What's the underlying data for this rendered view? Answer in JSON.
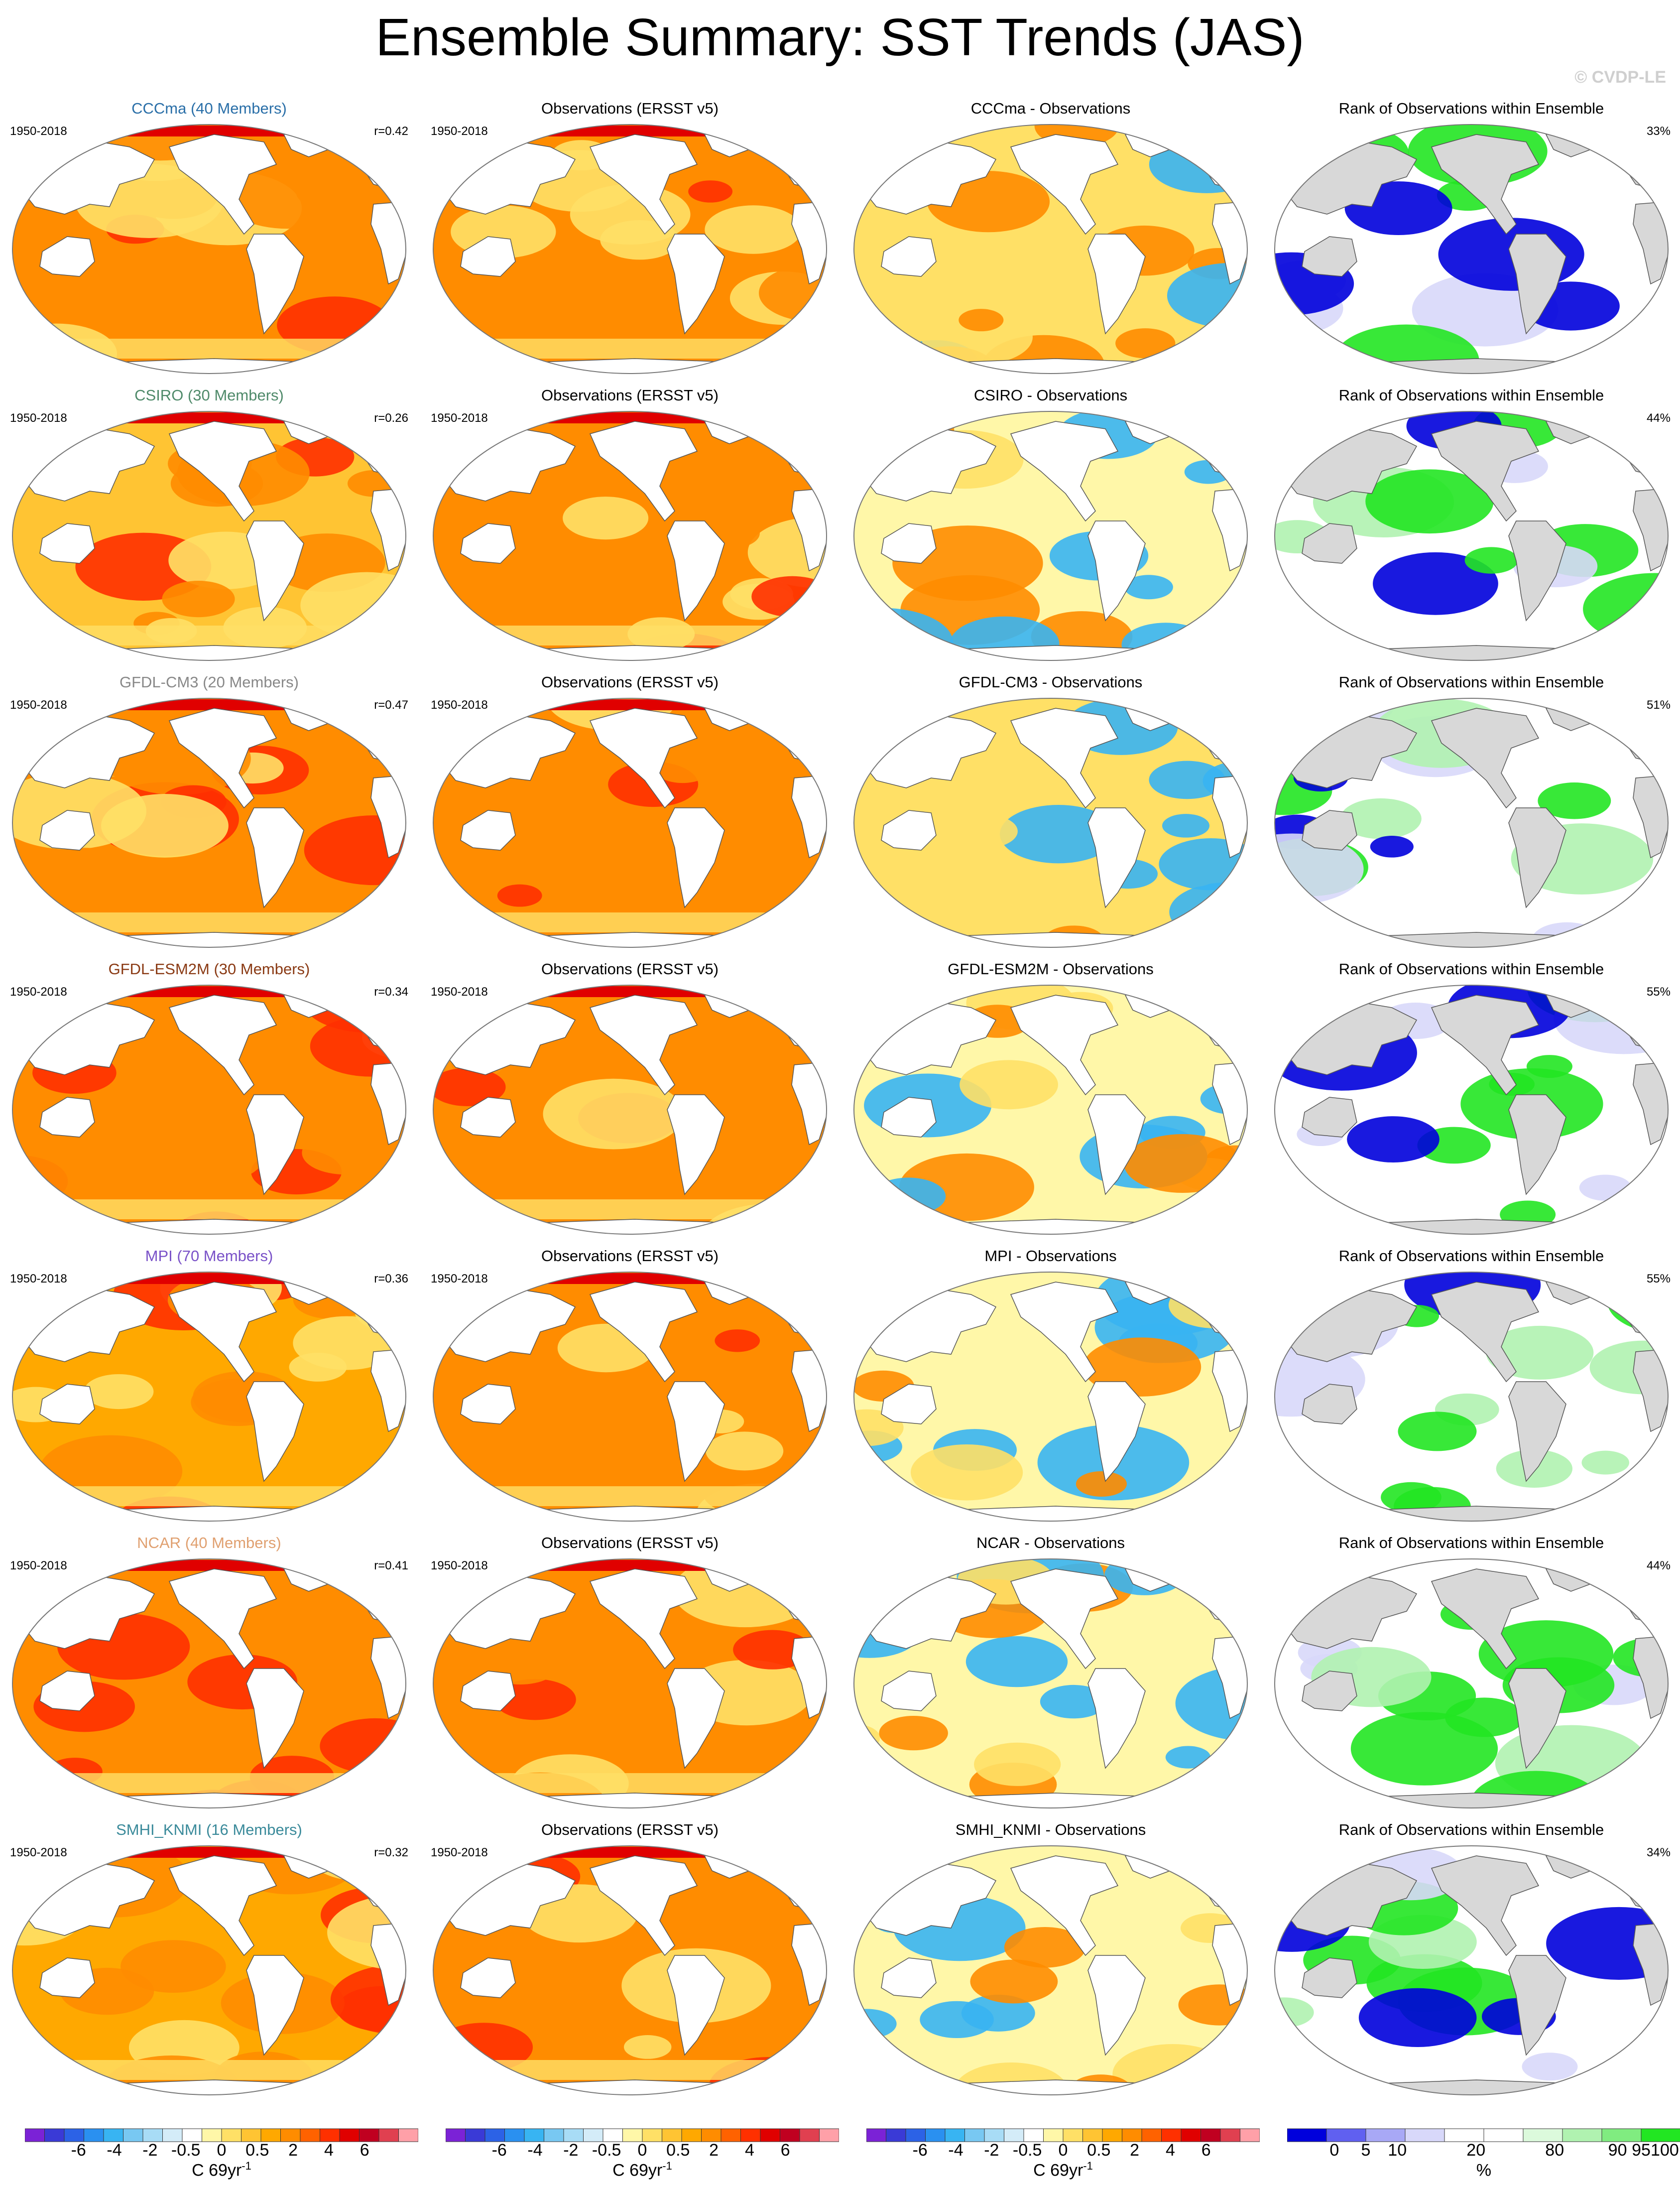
{
  "figure": {
    "title": "Ensemble Summary: SST Trends (JAS)",
    "copyright": "© CVDP-LE"
  },
  "colors": {
    "trend_bins": [
      "#7b22d6",
      "#3a3ad6",
      "#2c62e6",
      "#2a90f0",
      "#38b4f2",
      "#78c8f2",
      "#a8dcf6",
      "#d4ecf8",
      "#ffffff",
      "#fff7a8",
      "#ffe066",
      "#ffc433",
      "#ffa800",
      "#ff8c00",
      "#ff6200",
      "#ff3000",
      "#e00000",
      "#c00020",
      "#e04050",
      "#ffa0a8"
    ],
    "rank_bins": [
      "#0000dc",
      "#6060f0",
      "#a8a8f6",
      "#d8d8fa",
      "#ffffff",
      "#ffffff",
      "#dcfadc",
      "#b0f2b0",
      "#80ec80",
      "#22e622"
    ],
    "land": "#d8d8d8",
    "model_title_colors": {
      "CCCma": "#2a6fa8",
      "CSIRO": "#4f8a6a",
      "GFDL-CM3": "#888888",
      "GFDL-ESM2M": "#8a3a14",
      "MPI": "#7a52c8",
      "NCAR": "#e0a070",
      "SMHI_KNMI": "#3a8a9a"
    }
  },
  "rows": [
    {
      "model": "CCCma",
      "model_title": "CCCma (40 Members)",
      "years": "1950-2018",
      "r": "r=0.42",
      "obs_title": "Observations (ERSST v5)",
      "obs_years": "1950-2018",
      "diff_title": "CCCma - Observations",
      "rank_title": "Rank of Observations within Ensemble",
      "rank_pct": "33%",
      "model_level": 0.75,
      "obs_level": 0.65,
      "diff_level": 0.45,
      "rank_blue": 0.45,
      "rank_green": 0.12
    },
    {
      "model": "CSIRO",
      "model_title": "CSIRO (30 Members)",
      "years": "1950-2018",
      "r": "r=0.26",
      "obs_title": "Observations (ERSST v5)",
      "obs_years": "1950-2018",
      "diff_title": "CSIRO - Observations",
      "rank_title": "Rank of Observations within Ensemble",
      "rank_pct": "44%",
      "model_level": 0.45,
      "obs_level": 0.65,
      "diff_level": 0.15,
      "rank_blue": 0.08,
      "rank_green": 0.4
    },
    {
      "model": "GFDL-CM3",
      "model_title": "GFDL-CM3 (20 Members)",
      "years": "1950-2018",
      "r": "r=0.47",
      "obs_title": "Observations (ERSST v5)",
      "obs_years": "1950-2018",
      "diff_title": "GFDL-CM3 - Observations",
      "rank_title": "Rank of Observations within Ensemble",
      "rank_pct": "51%",
      "model_level": 0.7,
      "obs_level": 0.65,
      "diff_level": 0.4,
      "rank_blue": 0.3,
      "rank_green": 0.22
    },
    {
      "model": "GFDL-ESM2M",
      "model_title": "GFDL-ESM2M (30 Members)",
      "years": "1950-2018",
      "r": "r=0.34",
      "obs_title": "Observations (ERSST v5)",
      "obs_years": "1950-2018",
      "diff_title": "GFDL-ESM2M - Observations",
      "rank_title": "Rank of Observations within Ensemble",
      "rank_pct": "55%",
      "model_level": 0.65,
      "obs_level": 0.65,
      "diff_level": 0.3,
      "rank_blue": 0.2,
      "rank_green": 0.3
    },
    {
      "model": "MPI",
      "model_title": "MPI (70 Members)",
      "years": "1950-2018",
      "r": "r=0.36",
      "obs_title": "Observations (ERSST v5)",
      "obs_years": "1950-2018",
      "diff_title": "MPI - Observations",
      "rank_title": "Rank of Observations within Ensemble",
      "rank_pct": "55%",
      "model_level": 0.6,
      "obs_level": 0.65,
      "diff_level": 0.25,
      "rank_blue": 0.1,
      "rank_green": 0.32
    },
    {
      "model": "NCAR",
      "model_title": "NCAR (40 Members)",
      "years": "1950-2018",
      "r": "r=0.41",
      "obs_title": "Observations (ERSST v5)",
      "obs_years": "1950-2018",
      "diff_title": "NCAR - Observations",
      "rank_title": "Rank of Observations within Ensemble",
      "rank_pct": "44%",
      "model_level": 0.65,
      "obs_level": 0.65,
      "diff_level": 0.3,
      "rank_blue": 0.12,
      "rank_green": 0.45
    },
    {
      "model": "SMHI_KNMI",
      "model_title": "SMHI_KNMI (16 Members)",
      "years": "1950-2018",
      "r": "r=0.32",
      "obs_title": "Observations (ERSST v5)",
      "obs_years": "1950-2018",
      "diff_title": "SMHI_KNMI - Observations",
      "rank_title": "Rank of Observations within Ensemble",
      "rank_pct": "34%",
      "model_level": 0.6,
      "obs_level": 0.65,
      "diff_level": 0.35,
      "rank_blue": 0.35,
      "rank_green": 0.25
    }
  ],
  "colorbars": [
    {
      "labels": [
        "-6",
        "-4",
        "-2",
        "-0.5",
        "0",
        "0.5",
        "2",
        "4",
        "6"
      ],
      "unit": "C 69yr",
      "unit_sup": "-1"
    },
    {
      "labels": [
        "-6",
        "-4",
        "-2",
        "-0.5",
        "0",
        "0.5",
        "2",
        "4",
        "6"
      ],
      "unit": "C 69yr",
      "unit_sup": "-1"
    },
    {
      "labels": [
        "-6",
        "-4",
        "-2",
        "-0.5",
        "0",
        "0.5",
        "2",
        "4",
        "6"
      ],
      "unit": "C 69yr",
      "unit_sup": "-1"
    },
    {
      "labels": [
        "0",
        "5",
        "10",
        "20",
        "80",
        "90",
        "95",
        "100"
      ],
      "unit": "%",
      "unit_sup": ""
    }
  ]
}
